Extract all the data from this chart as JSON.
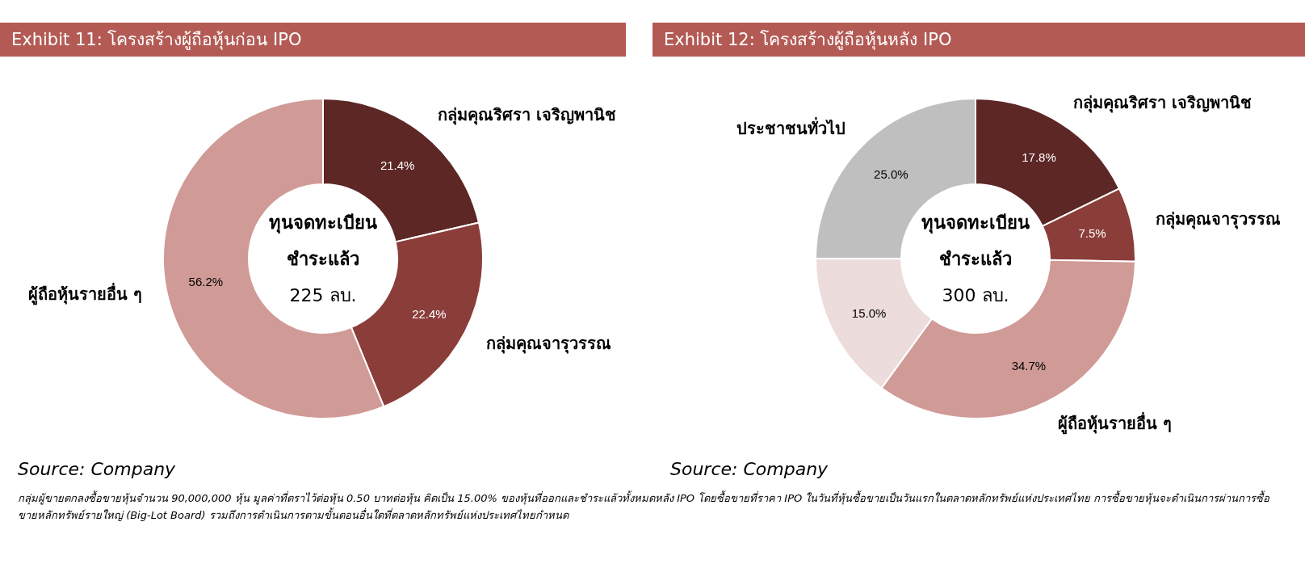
{
  "chart_data": [
    {
      "type": "donut",
      "title": "Exhibit 11: โครงสร้างผู้ถือหุ้นก่อน IPO",
      "categories": [
        "กลุ่มคุณริศรา เจริญพานิช",
        "กลุ่มคุณจารุวรรณ",
        "ผู้ถือหุ้นรายอื่น ๆ"
      ],
      "values": [
        21.4,
        22.4,
        56.2
      ],
      "colors": [
        "#5c2725",
        "#8b3d3a",
        "#d09a96"
      ],
      "value_labels": [
        "21.4%",
        "22.4%",
        "56.2%"
      ],
      "annotations": [
        "ทุนจดทะเบียน\nชำระแล้ว\n225 ลบ.",
        "Source: Company"
      ]
    },
    {
      "type": "donut",
      "title": "Exhibit 12: โครงสร้างผู้ถือหุ้นหลัง IPO",
      "categories": [
        "กลุ่มคุณริศรา เจริญพานิช",
        "กลุ่มคุณจารุวรรณ",
        "ผู้ถือหุ้นรายอื่น ๆ",
        null,
        "ประชาชนทั่วไป"
      ],
      "values": [
        17.8,
        7.5,
        34.7,
        15.0,
        25.0
      ],
      "colors": [
        "#5c2725",
        "#8b3d3a",
        "#d09a96",
        "#eddcdc",
        "#bfbfbf"
      ],
      "value_labels": [
        "17.8%",
        "7.5%",
        "34.7%",
        "15.0%",
        "25.0%"
      ],
      "annotations": [
        "ทุนจดทะเบียน\nชำระแล้ว\n300 ลบ.",
        "Source: Company",
        "กลุ่มผู้ขายตกลงซื้อขายหุ้นจำนวน 90,000,000 หุ้น มูลค่าที่ตราไว้ต่อหุ้น 0.50 บาทต่อหุ้น คิดเป็น 15.00% ของหุ้นที่ออกและชำระแล้วทั้งหมดหลัง IPO โดยซื้อขายที่ราคา IPO ในวันที่หุ้นซื้อขายเป็นวันแรกในตลาดหลักทรัพย์แห่งประเทศไทย การซื้อขายหุ้นจะดำเนินการผ่านการซื้อขายหลักทรัพย์รายใหญ่ (Big-Lot Board) รวมถึงการดำเนินการตามขั้นตอนอื่นใดที่ตลาดหลักทรัพย์แห่งประเทศไทยกำหนด"
      ]
    }
  ]
}
